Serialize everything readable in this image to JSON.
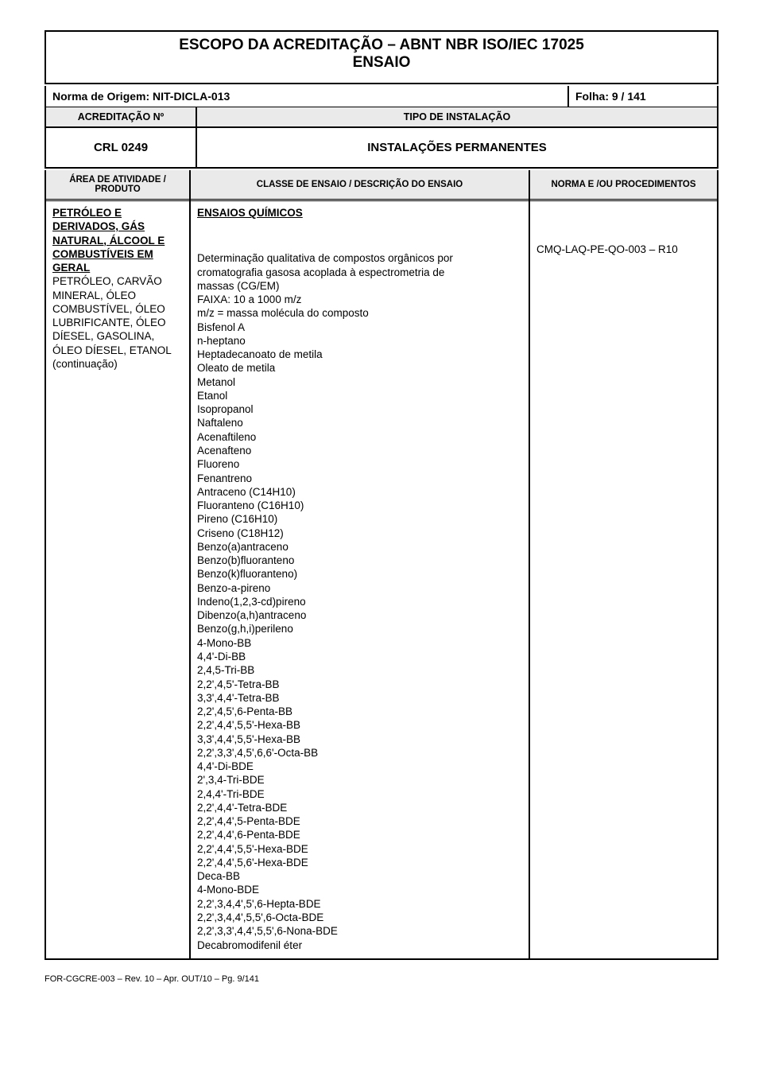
{
  "title": {
    "line1": "ESCOPO  DA  ACREDITAÇÃO – ABNT NBR ISO/IEC 17025",
    "line2": "ENSAIO"
  },
  "norma": {
    "label": "Norma de Origem: NIT-DICLA-013",
    "folha": "Folha: 9 / 141"
  },
  "acc": {
    "left": "ACREDITAÇÃO Nº",
    "right": "TIPO DE INSTALAÇÃO"
  },
  "crl": {
    "left": "CRL 0249",
    "right": "INSTALAÇÕES PERMANENTES"
  },
  "headers": {
    "col1a": "ÁREA DE ATIVIDADE /",
    "col1b": "PRODUTO",
    "col2": "CLASSE DE ENSAIO / DESCRIÇÃO DO ENSAIO",
    "col3": "NORMA  E /OU  PROCEDIMENTOS"
  },
  "produto": {
    "l1": "PETRÓLEO E",
    "l2": "DERIVADOS, GÁS",
    "l3": "NATURAL, ÁLCOOL E",
    "l4": "COMBUSTÍVEIS EM",
    "l5": "GERAL",
    "l6": "PETRÓLEO, CARVÃO",
    "l7": "MINERAL, ÓLEO",
    "l8": "COMBUSTÍVEL, ÓLEO",
    "l9": "LUBRIFICANTE, ÓLEO",
    "l10": "DÍESEL, GASOLINA,",
    "l11": "ÓLEO DÍESEL, ETANOL",
    "l12": "(continuação)"
  },
  "desc": {
    "section": "ENSAIOS QUÍMICOS",
    "p1": "Determinação qualitativa de compostos orgânicos por",
    "p2": "cromatografia gasosa acoplada à espectrometria de",
    "p3": "massas (CG/EM)",
    "p4": "FAIXA: 10 a 1000 m/z",
    "p5": "m/z = massa molécula do composto",
    "compounds": [
      "Bisfenol A",
      "n-heptano",
      "Heptadecanoato de metila",
      "Oleato de metila",
      "Metanol",
      "Etanol",
      "Isopropanol",
      "Naftaleno",
      "Acenaftileno",
      "Acenafteno",
      "Fluoreno",
      "Fenantreno",
      "Antraceno (C14H10)",
      "Fluoranteno (C16H10)",
      "Pireno (C16H10)",
      "Criseno (C18H12)",
      "Benzo(a)antraceno",
      "Benzo(b)fluoranteno",
      "Benzo(k)fluoranteno)",
      "Benzo-a-pireno",
      "Indeno(1,2,3-cd)pireno",
      "Dibenzo(a,h)antraceno",
      "Benzo(g,h,i)perileno",
      "4-Mono-BB",
      "4,4'-Di-BB",
      "2,4,5-Tri-BB",
      "2,2',4,5'-Tetra-BB",
      "3,3',4,4'-Tetra-BB",
      "2,2',4,5',6-Penta-BB",
      "2,2',4,4',5,5'-Hexa-BB",
      "3,3',4,4',5,5'-Hexa-BB",
      "2,2',3,3',4,5',6,6'-Octa-BB",
      "4,4'-Di-BDE",
      "2',3,4-Tri-BDE",
      "2,4,4'-Tri-BDE",
      "2,2',4,4'-Tetra-BDE",
      "2,2',4,4',5-Penta-BDE",
      "2,2',4,4',6-Penta-BDE",
      "2,2',4,4',5,5'-Hexa-BDE",
      "2,2',4,4',5,6'-Hexa-BDE",
      "Deca-BB",
      "4-Mono-BDE",
      "2,2',3,4,4',5',6-Hepta-BDE",
      "2,2',3,4,4',5,5',6-Octa-BDE",
      "2,2',3,3',4,4',5,5',6-Nona-BDE",
      "Decabromodifenil éter"
    ]
  },
  "norma_proc": {
    "code": "CMQ-LAQ-PE-QO-003 – R10"
  },
  "footer": {
    "text": "FOR-CGCRE-003 – Rev. 10 – Apr. OUT/10 – Pg. 9/141"
  }
}
